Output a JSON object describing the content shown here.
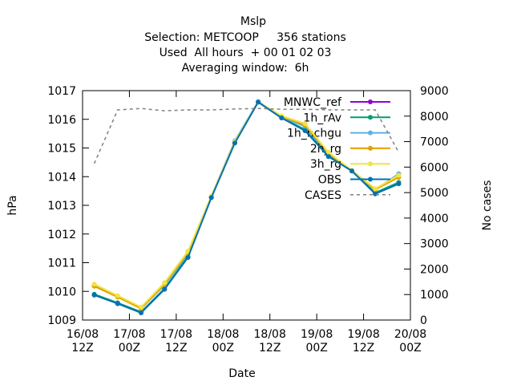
{
  "chart_data": {
    "type": "line",
    "title": "Mslp",
    "subtitle": [
      "Selection: METCOOP     356 stations",
      "Used  All hours  + 00 01 02 03",
      "Averaging window:  6h"
    ],
    "xlabel": "Date",
    "ylabel": "hPa",
    "y2label": "No cases",
    "x": [
      3,
      9,
      15,
      21,
      27,
      33,
      39,
      45,
      51,
      57,
      63,
      69,
      75,
      81
    ],
    "xlim": [
      0,
      84
    ],
    "xticks": [
      {
        "value": 0,
        "label": "16/08\n12Z"
      },
      {
        "value": 12,
        "label": "17/08\n00Z"
      },
      {
        "value": 24,
        "label": "17/08\n12Z"
      },
      {
        "value": 36,
        "label": "18/08\n00Z"
      },
      {
        "value": 48,
        "label": "18/08\n12Z"
      },
      {
        "value": 60,
        "label": "19/08\n00Z"
      },
      {
        "value": 72,
        "label": "19/08\n12Z"
      },
      {
        "value": 84,
        "label": "20/08\n00Z"
      }
    ],
    "ylim": [
      1009,
      1017
    ],
    "yticks": [
      1009,
      1010,
      1011,
      1012,
      1013,
      1014,
      1015,
      1016,
      1017
    ],
    "y2lim": [
      0,
      9000
    ],
    "y2ticks": [
      0,
      1000,
      2000,
      3000,
      4000,
      5000,
      6000,
      7000,
      8000,
      9000
    ],
    "legend": "top-right",
    "series": [
      {
        "name": "MNWC_ref",
        "color": "#9400d3",
        "values": [
          1009.88,
          1009.58,
          1009.27,
          1010.08,
          1011.2,
          1013.28,
          1015.18,
          1016.6,
          1016.05,
          1015.62,
          1014.72,
          1014.2,
          1013.42,
          1013.76
        ]
      },
      {
        "name": "1h_rAv",
        "color": "#009e73",
        "values": [
          1009.9,
          1009.6,
          1009.28,
          1010.1,
          1011.22,
          1013.3,
          1015.2,
          1016.6,
          1016.06,
          1015.64,
          1014.74,
          1014.2,
          1013.44,
          1013.8
        ]
      },
      {
        "name": "1h_nchgu",
        "color": "#56b4e9",
        "values": [
          1010.2,
          1009.82,
          1009.4,
          1010.22,
          1011.3,
          1013.32,
          1015.25,
          1016.62,
          1016.08,
          1015.75,
          1014.8,
          1014.22,
          1013.55,
          1014.1
        ]
      },
      {
        "name": "2h_rg",
        "color": "#e69f00",
        "values": [
          1010.18,
          1009.8,
          1009.4,
          1010.25,
          1011.35,
          1013.3,
          1015.22,
          1016.6,
          1016.1,
          1015.8,
          1014.82,
          1014.2,
          1013.55,
          1013.98
        ]
      },
      {
        "name": "3h_rg",
        "color": "#f0e442",
        "values": [
          1010.25,
          1009.85,
          1009.45,
          1010.3,
          1011.4,
          1013.32,
          1015.22,
          1016.6,
          1016.12,
          1015.85,
          1014.85,
          1014.22,
          1013.58,
          1014.05
        ]
      },
      {
        "name": "OBS",
        "color": "#0072b2",
        "values": [
          1009.87,
          1009.57,
          1009.25,
          1010.07,
          1011.18,
          1013.27,
          1015.17,
          1016.6,
          1016.05,
          1015.6,
          1014.7,
          1014.2,
          1013.4,
          1013.75
        ]
      },
      {
        "name": "CASES",
        "color": "#808080",
        "axis": "y2",
        "values": [
          6140,
          8245,
          8300,
          8210,
          8245,
          8245,
          8280,
          8300,
          8270,
          8270,
          8245,
          8245,
          8245,
          6580
        ]
      }
    ]
  }
}
